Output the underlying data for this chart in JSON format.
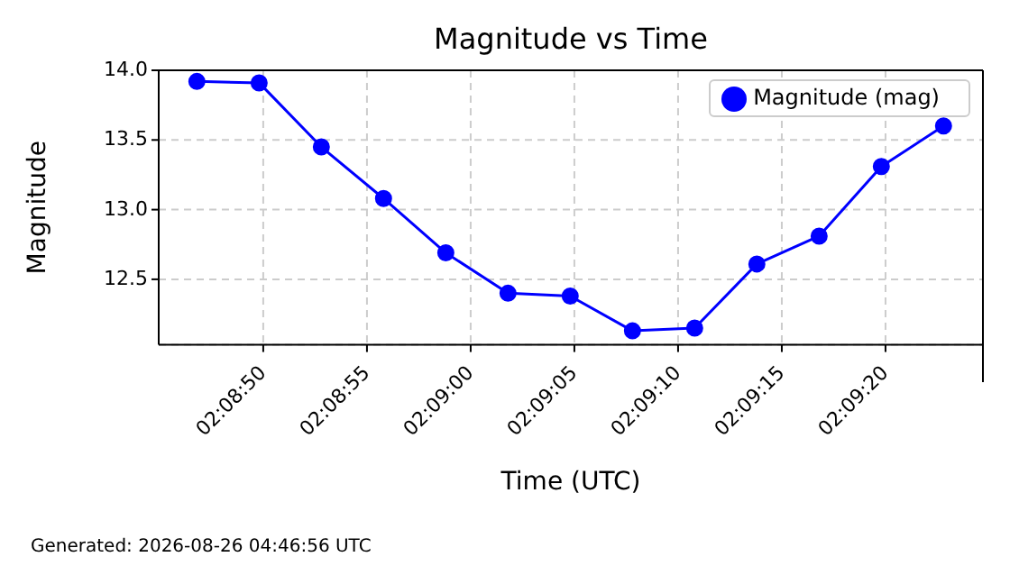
{
  "chart_data": {
    "type": "line",
    "title": "Magnitude vs Time",
    "xlabel": "Time (UTC)",
    "ylabel": "Magnitude",
    "x": [
      2.146333,
      2.147167,
      2.148,
      2.148833,
      2.149667,
      2.1505,
      2.151333,
      2.152167,
      2.153,
      2.153833,
      2.154667,
      2.1555,
      2.156333
    ],
    "series": [
      {
        "name": "Magnitude (mag)",
        "color": "#0000ff",
        "values": [
          13.92,
          13.91,
          13.45,
          13.08,
          12.69,
          12.4,
          12.38,
          12.13,
          12.15,
          12.61,
          12.81,
          13.31,
          13.6
        ]
      }
    ],
    "xlim": [
      2.145822,
      2.156861
    ],
    "xticks": [
      {
        "value": 2.147222,
        "label": "02:08:50"
      },
      {
        "value": 2.148611,
        "label": "02:08:55"
      },
      {
        "value": 2.15,
        "label": "02:09:00"
      },
      {
        "value": 2.151389,
        "label": "02:09:05"
      },
      {
        "value": 2.152778,
        "label": "02:09:10"
      },
      {
        "value": 2.154167,
        "label": "02:09:15"
      },
      {
        "value": 2.155556,
        "label": "02:09:20"
      }
    ],
    "ylim": [
      12.03,
      14.0
    ],
    "yticks": [
      {
        "value": 12.5,
        "label": "12.5"
      },
      {
        "value": 13,
        "label": "13.0"
      },
      {
        "value": 13.5,
        "label": "13.5"
      },
      {
        "value": 14,
        "label": "14.0"
      }
    ],
    "grid": true,
    "legend": "top right",
    "marker": "circle",
    "line_style": "solid",
    "annotations": [
      "Generated: 2026-08-26 04:46:56 UTC"
    ]
  }
}
